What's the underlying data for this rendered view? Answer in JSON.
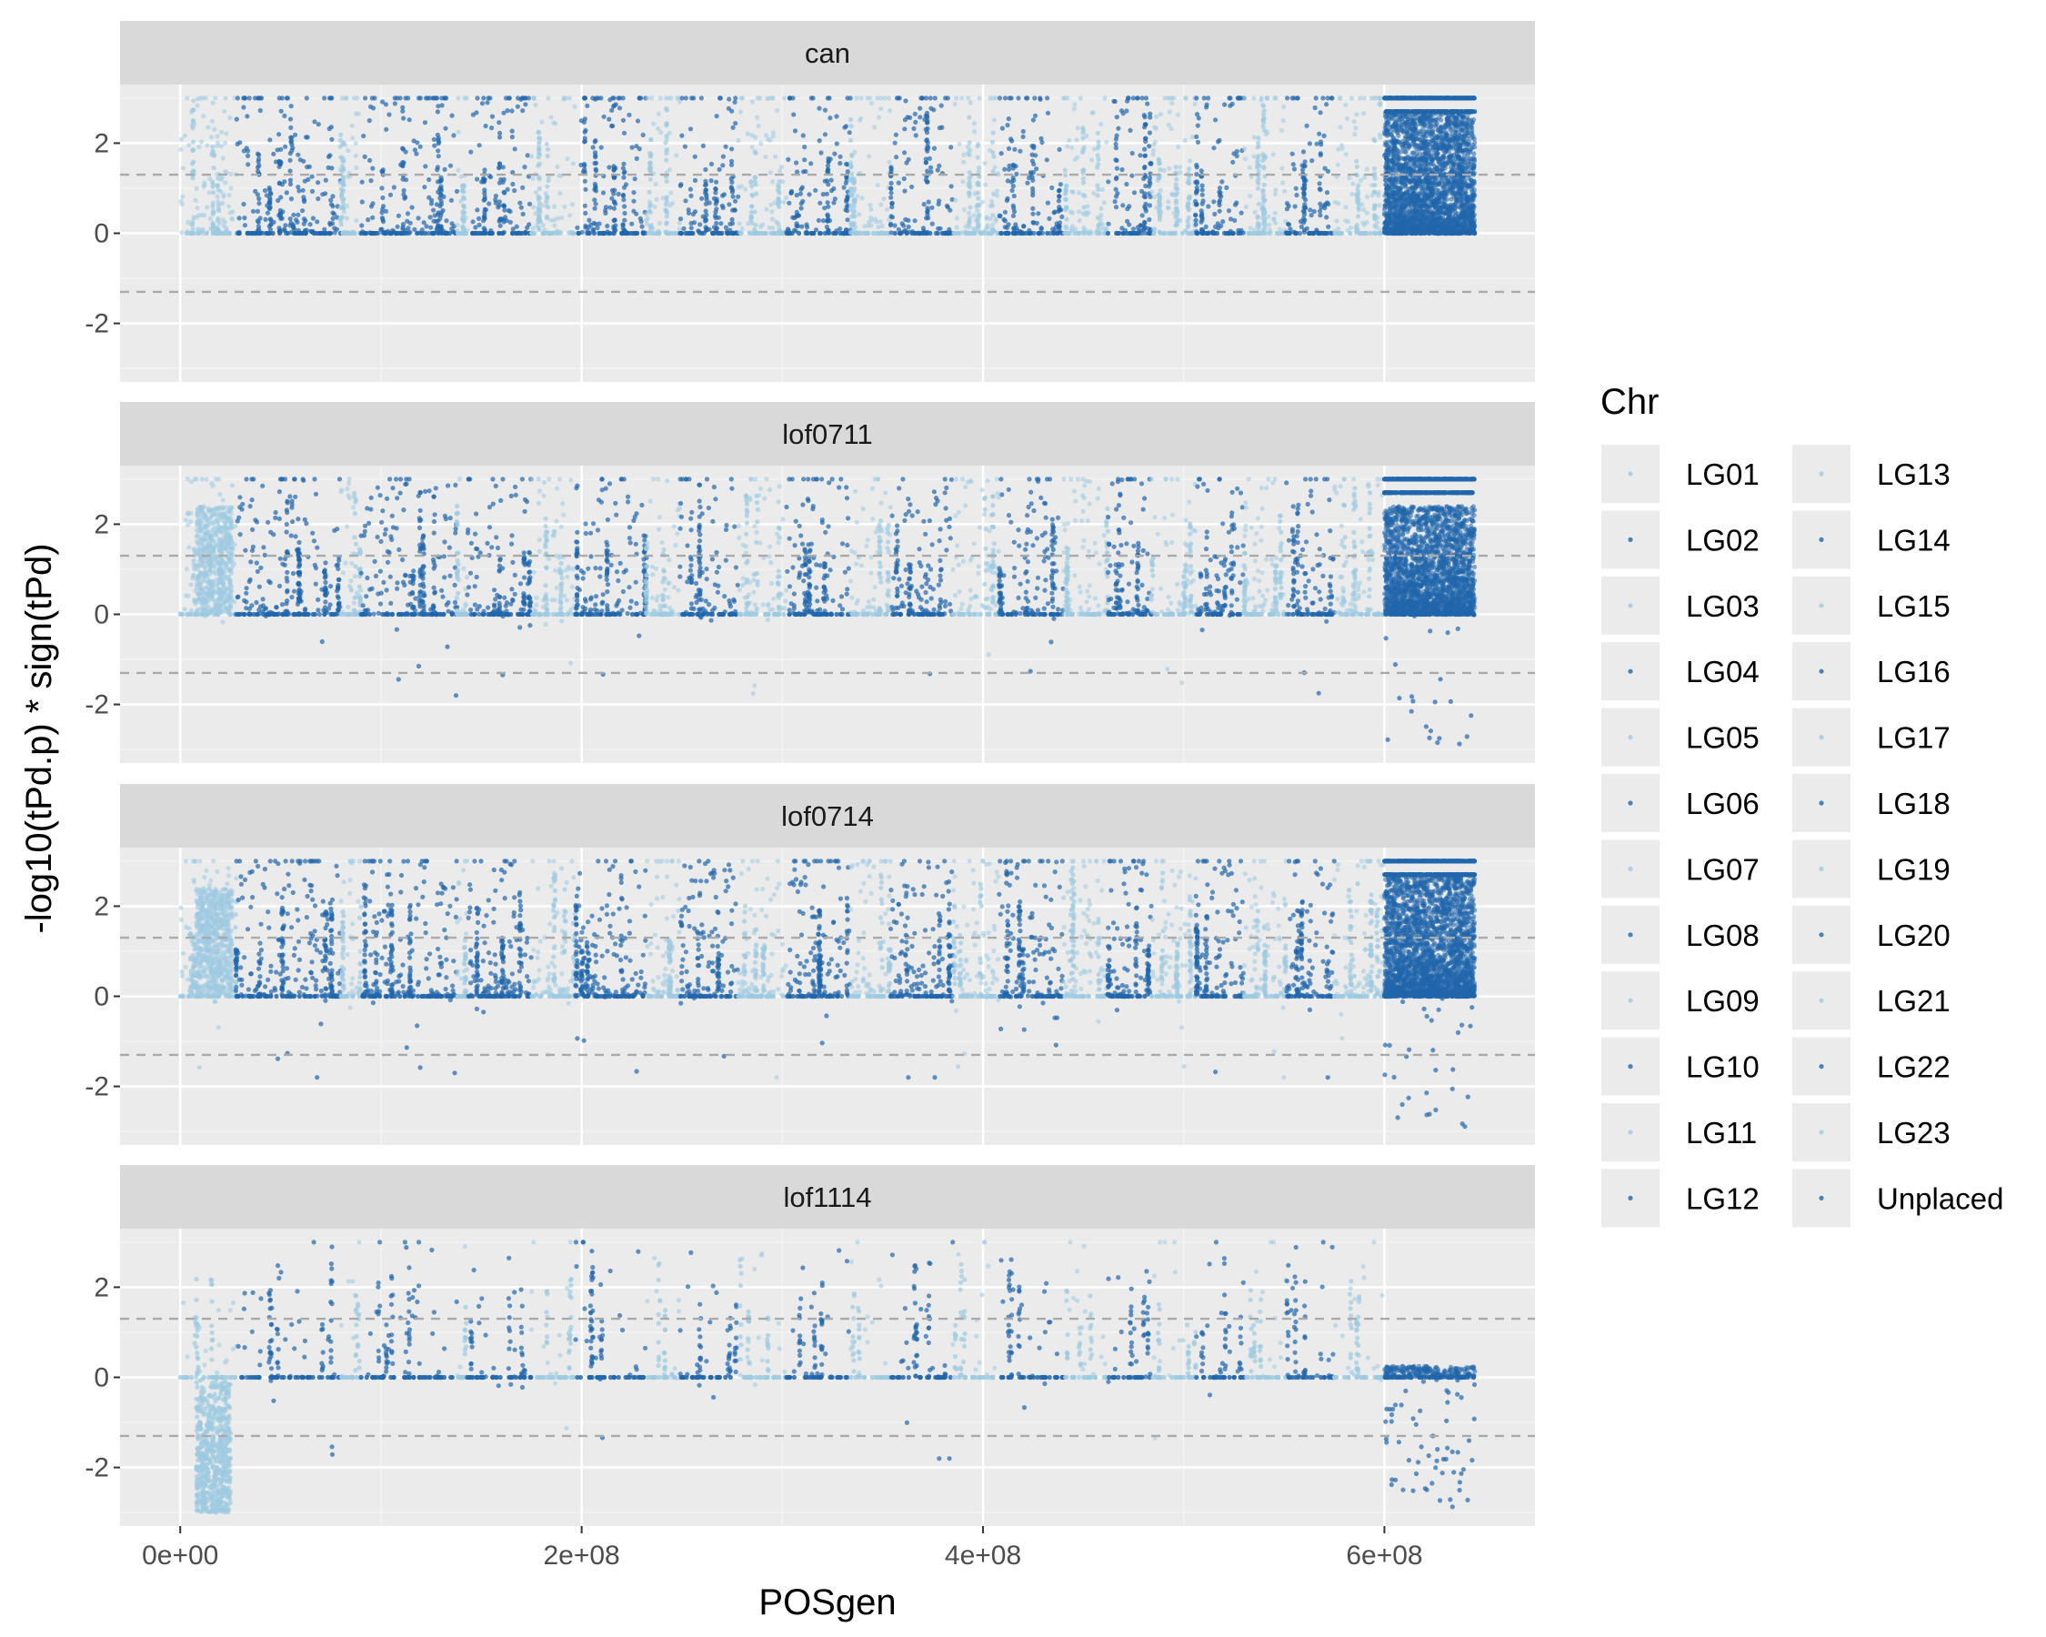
{
  "chart_data": {
    "type": "scatter",
    "subtype": "manhattan",
    "xlabel": "POSgen",
    "ylabel": "-log10(tPd.p) * sign(tPd)",
    "xlim": [
      -30000000,
      675000000
    ],
    "ylim": [
      -3.3,
      3.3
    ],
    "x_ticks": [
      0,
      200000000,
      400000000,
      600000000
    ],
    "x_tick_labels": [
      "0e+00",
      "2e+08",
      "4e+08",
      "6e+08"
    ],
    "y_ticks": [
      -2,
      0,
      2
    ],
    "y_tick_labels": [
      "-2",
      "0",
      "2"
    ],
    "threshold_lines": [
      1.3,
      -1.3
    ],
    "grid": true,
    "legend": {
      "title": "Chr",
      "position": "right",
      "ncol": 2,
      "entries": [
        "LG01",
        "LG02",
        "LG03",
        "LG04",
        "LG05",
        "LG06",
        "LG07",
        "LG08",
        "LG09",
        "LG10",
        "LG11",
        "LG12",
        "LG13",
        "LG14",
        "LG15",
        "LG16",
        "LG17",
        "LG18",
        "LG19",
        "LG20",
        "LG21",
        "LG22",
        "LG23",
        "Unplaced"
      ]
    },
    "colors": {
      "light": "#9ecae1",
      "dark": "#2166ac",
      "panel_bg": "#ebebeb",
      "strip_bg": "#d9d9d9",
      "threshold": "#aaaaaa"
    },
    "chromosomes": [
      {
        "name": "LG01",
        "start": 0,
        "end": 28000000
      },
      {
        "name": "LG02",
        "start": 28000000,
        "end": 80000000
      },
      {
        "name": "LG03",
        "start": 80000000,
        "end": 90000000
      },
      {
        "name": "LG04",
        "start": 90000000,
        "end": 138000000
      },
      {
        "name": "LG05",
        "start": 138000000,
        "end": 143000000
      },
      {
        "name": "LG06",
        "start": 143000000,
        "end": 175000000
      },
      {
        "name": "LG07",
        "start": 175000000,
        "end": 197000000
      },
      {
        "name": "LG08",
        "start": 197000000,
        "end": 232000000
      },
      {
        "name": "LG09",
        "start": 232000000,
        "end": 249000000
      },
      {
        "name": "LG10",
        "start": 249000000,
        "end": 278000000
      },
      {
        "name": "LG11",
        "start": 278000000,
        "end": 302000000
      },
      {
        "name": "LG12",
        "start": 302000000,
        "end": 334000000
      },
      {
        "name": "LG13",
        "start": 334000000,
        "end": 354000000
      },
      {
        "name": "LG14",
        "start": 354000000,
        "end": 385000000
      },
      {
        "name": "LG15",
        "start": 385000000,
        "end": 408000000
      },
      {
        "name": "LG16",
        "start": 408000000,
        "end": 440000000
      },
      {
        "name": "LG17",
        "start": 440000000,
        "end": 462000000
      },
      {
        "name": "LG18",
        "start": 462000000,
        "end": 484000000
      },
      {
        "name": "LG19",
        "start": 484000000,
        "end": 506000000
      },
      {
        "name": "LG20",
        "start": 506000000,
        "end": 530000000
      },
      {
        "name": "LG21",
        "start": 530000000,
        "end": 551000000
      },
      {
        "name": "LG22",
        "start": 551000000,
        "end": 575000000
      },
      {
        "name": "LG23",
        "start": 575000000,
        "end": 600000000
      },
      {
        "name": "Unplaced",
        "start": 600000000,
        "end": 645000000
      }
    ],
    "panels": [
      {
        "label": "can",
        "density": 0.5,
        "neg": 0,
        "lg01_pos": 0.05,
        "lg01_neg": 0,
        "unplaced_top": 2.7,
        "cap_prob": 0.12
      },
      {
        "label": "lof0711",
        "density": 0.5,
        "neg": 0.02,
        "lg01_pos": 0.8,
        "lg01_neg": 0,
        "unplaced_top": 2.4,
        "cap_prob": 0.06
      },
      {
        "label": "lof0714",
        "density": 0.6,
        "neg": 0.025,
        "lg01_pos": 1.0,
        "lg01_neg": 0,
        "unplaced_top": 2.7,
        "cap_prob": 0.08
      },
      {
        "label": "lof1114",
        "density": 0.12,
        "neg": 0.05,
        "lg01_pos": 0,
        "lg01_neg": 1.0,
        "unplaced_top": 0.25,
        "cap_prob": 0.06
      }
    ]
  }
}
